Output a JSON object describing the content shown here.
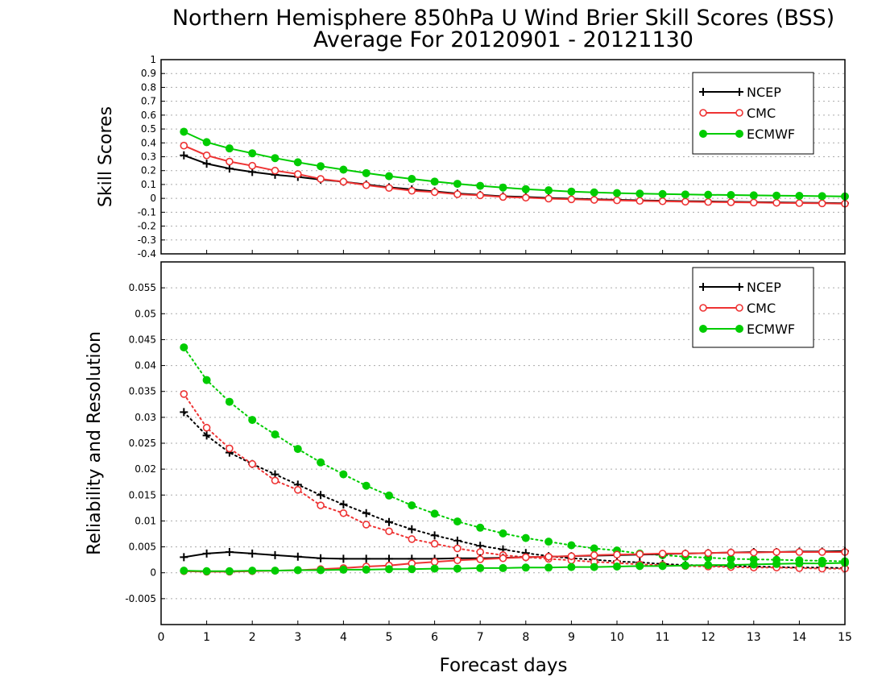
{
  "chart_data": {
    "title_line1": "Northern Hemisphere 850hPa U Wind Brier Skill Scores (BSS)",
    "title_line2": "Average For 20120901 - 20121130",
    "xlabel": "Forecast days",
    "x_ticks": [
      0,
      1,
      2,
      3,
      4,
      5,
      6,
      7,
      8,
      9,
      10,
      11,
      12,
      13,
      14,
      15
    ],
    "xlim": [
      0,
      15
    ],
    "colors": {
      "NCEP": "#000000",
      "CMC": "#ee3333",
      "ECMWF": "#00cc00"
    },
    "panels": [
      {
        "type": "line",
        "ylabel": "Skill Scores",
        "ylim": [
          -0.4,
          1
        ],
        "y_ticks": [
          1,
          0.9,
          0.8,
          0.7,
          0.6,
          0.5,
          0.4,
          0.3,
          0.2,
          0.1,
          0,
          -0.1,
          -0.2,
          -0.3,
          -0.4
        ],
        "y_tick_labels": [
          "1",
          "0.9",
          "0.8",
          "0.7",
          "0.6",
          "0.5",
          "0.4",
          "0.3",
          "0.2",
          "0.1",
          "0",
          "-0.1",
          "-0.2",
          "-0.3",
          "-0.4"
        ],
        "grid": true,
        "legend": "top-right",
        "x": [
          0.5,
          1,
          1.5,
          2,
          2.5,
          3,
          3.5,
          4,
          4.5,
          5,
          5.5,
          6,
          6.5,
          7,
          7.5,
          8,
          8.5,
          9,
          9.5,
          10,
          10.5,
          11,
          11.5,
          12,
          12.5,
          13,
          13.5,
          14,
          14.5,
          15
        ],
        "series": [
          {
            "name": "NCEP",
            "style": "solid",
            "marker": "plus",
            "values": [
              0.31,
              0.25,
              0.215,
              0.19,
              0.17,
              0.155,
              0.135,
              0.12,
              0.1,
              0.08,
              0.065,
              0.05,
              0.035,
              0.025,
              0.015,
              0.01,
              0.003,
              -0.002,
              -0.006,
              -0.01,
              -0.014,
              -0.017,
              -0.02,
              -0.022,
              -0.025,
              -0.027,
              -0.029,
              -0.031,
              -0.033,
              -0.035
            ]
          },
          {
            "name": "CMC",
            "style": "solid",
            "marker": "circle",
            "values": [
              0.38,
              0.31,
              0.265,
              0.235,
              0.2,
              0.175,
              0.14,
              0.12,
              0.095,
              0.075,
              0.055,
              0.045,
              0.03,
              0.022,
              0.01,
              0.005,
              -0.002,
              -0.007,
              -0.011,
              -0.014,
              -0.018,
              -0.021,
              -0.024,
              -0.026,
              -0.028,
              -0.03,
              -0.032,
              -0.034,
              -0.036,
              -0.038
            ]
          },
          {
            "name": "ECMWF",
            "style": "solid",
            "marker": "dot",
            "values": [
              0.48,
              0.405,
              0.36,
              0.325,
              0.29,
              0.26,
              0.232,
              0.207,
              0.182,
              0.16,
              0.14,
              0.121,
              0.105,
              0.09,
              0.078,
              0.066,
              0.058,
              0.049,
              0.043,
              0.038,
              0.034,
              0.031,
              0.028,
              0.026,
              0.024,
              0.022,
              0.02,
              0.018,
              0.016,
              0.014
            ]
          }
        ]
      },
      {
        "type": "line",
        "ylabel": "Reliability and Resolution",
        "ylim": [
          -0.01,
          0.06
        ],
        "y_ticks": [
          0.055,
          0.05,
          0.045,
          0.04,
          0.035,
          0.03,
          0.025,
          0.02,
          0.015,
          0.01,
          0.005,
          0,
          -0.005
        ],
        "y_tick_labels": [
          "0.055",
          "0.05",
          "0.045",
          "0.04",
          "0.035",
          "0.03",
          "0.025",
          "0.02",
          "0.015",
          "0.01",
          "0.005",
          "0",
          "-0.005"
        ],
        "grid": true,
        "legend": "top-right",
        "x": [
          0.5,
          1,
          1.5,
          2,
          2.5,
          3,
          3.5,
          4,
          4.5,
          5,
          5.5,
          6,
          6.5,
          7,
          7.5,
          8,
          8.5,
          9,
          9.5,
          10,
          10.5,
          11,
          11.5,
          12,
          12.5,
          13,
          13.5,
          14,
          14.5,
          15
        ],
        "series": [
          {
            "name": "NCEP",
            "style": "dotted",
            "marker": "plus",
            "values": [
              0.031,
              0.0265,
              0.0232,
              0.021,
              0.019,
              0.017,
              0.015,
              0.0132,
              0.0115,
              0.0098,
              0.0084,
              0.0072,
              0.0062,
              0.0052,
              0.0045,
              0.0038,
              0.0032,
              0.0028,
              0.0025,
              0.0022,
              0.002,
              0.0017,
              0.0015,
              0.0014,
              0.0013,
              0.0012,
              0.0011,
              0.001,
              0.001,
              0.0009
            ]
          },
          {
            "name": "CMC",
            "style": "dotted",
            "marker": "circle",
            "values": [
              0.0345,
              0.028,
              0.024,
              0.021,
              0.0178,
              0.016,
              0.013,
              0.0115,
              0.0093,
              0.008,
              0.0065,
              0.0056,
              0.0047,
              0.004,
              0.0034,
              0.003,
              0.0027,
              0.0024,
              0.0021,
              0.0019,
              0.0016,
              0.0015,
              0.0013,
              0.0012,
              0.0011,
              0.001,
              0.001,
              0.0009,
              0.0008,
              0.0008
            ]
          },
          {
            "name": "ECMWF",
            "style": "dotted",
            "marker": "dot",
            "values": [
              0.0435,
              0.0372,
              0.033,
              0.0295,
              0.0267,
              0.0239,
              0.0213,
              0.019,
              0.0168,
              0.0149,
              0.013,
              0.0114,
              0.0099,
              0.0087,
              0.0076,
              0.0067,
              0.006,
              0.0053,
              0.0047,
              0.0043,
              0.0037,
              0.0034,
              0.0031,
              0.0029,
              0.0027,
              0.0026,
              0.0025,
              0.0024,
              0.0023,
              0.0022
            ]
          },
          {
            "name": "NCEP",
            "style": "solid",
            "marker": "plus",
            "values": [
              0.003,
              0.0037,
              0.004,
              0.0037,
              0.0034,
              0.0031,
              0.0028,
              0.0027,
              0.0027,
              0.0027,
              0.0027,
              0.0027,
              0.0028,
              0.0028,
              0.0029,
              0.003,
              0.0031,
              0.0032,
              0.0033,
              0.0034,
              0.0035,
              0.0036,
              0.0037,
              0.0038,
              0.0039,
              0.004,
              0.004,
              0.0041,
              0.0041,
              0.0042
            ]
          },
          {
            "name": "CMC",
            "style": "solid",
            "marker": "circle",
            "values": [
              0.0003,
              0.0002,
              0.0002,
              0.0003,
              0.0004,
              0.0005,
              0.0007,
              0.0009,
              0.0012,
              0.0014,
              0.0018,
              0.0021,
              0.0024,
              0.0026,
              0.0028,
              0.003,
              0.0031,
              0.0032,
              0.0034,
              0.0035,
              0.0036,
              0.0037,
              0.0037,
              0.0038,
              0.0039,
              0.0039,
              0.004,
              0.004,
              0.004,
              0.004
            ]
          },
          {
            "name": "ECMWF",
            "style": "solid",
            "marker": "dot",
            "values": [
              0.0004,
              0.0003,
              0.0003,
              0.0004,
              0.0004,
              0.0005,
              0.0005,
              0.0006,
              0.0006,
              0.0007,
              0.0007,
              0.0008,
              0.0008,
              0.0009,
              0.0009,
              0.001,
              0.001,
              0.0011,
              0.0011,
              0.0012,
              0.0013,
              0.0013,
              0.0014,
              0.0015,
              0.0015,
              0.0016,
              0.0017,
              0.0018,
              0.0018,
              0.0019
            ]
          }
        ]
      }
    ]
  }
}
